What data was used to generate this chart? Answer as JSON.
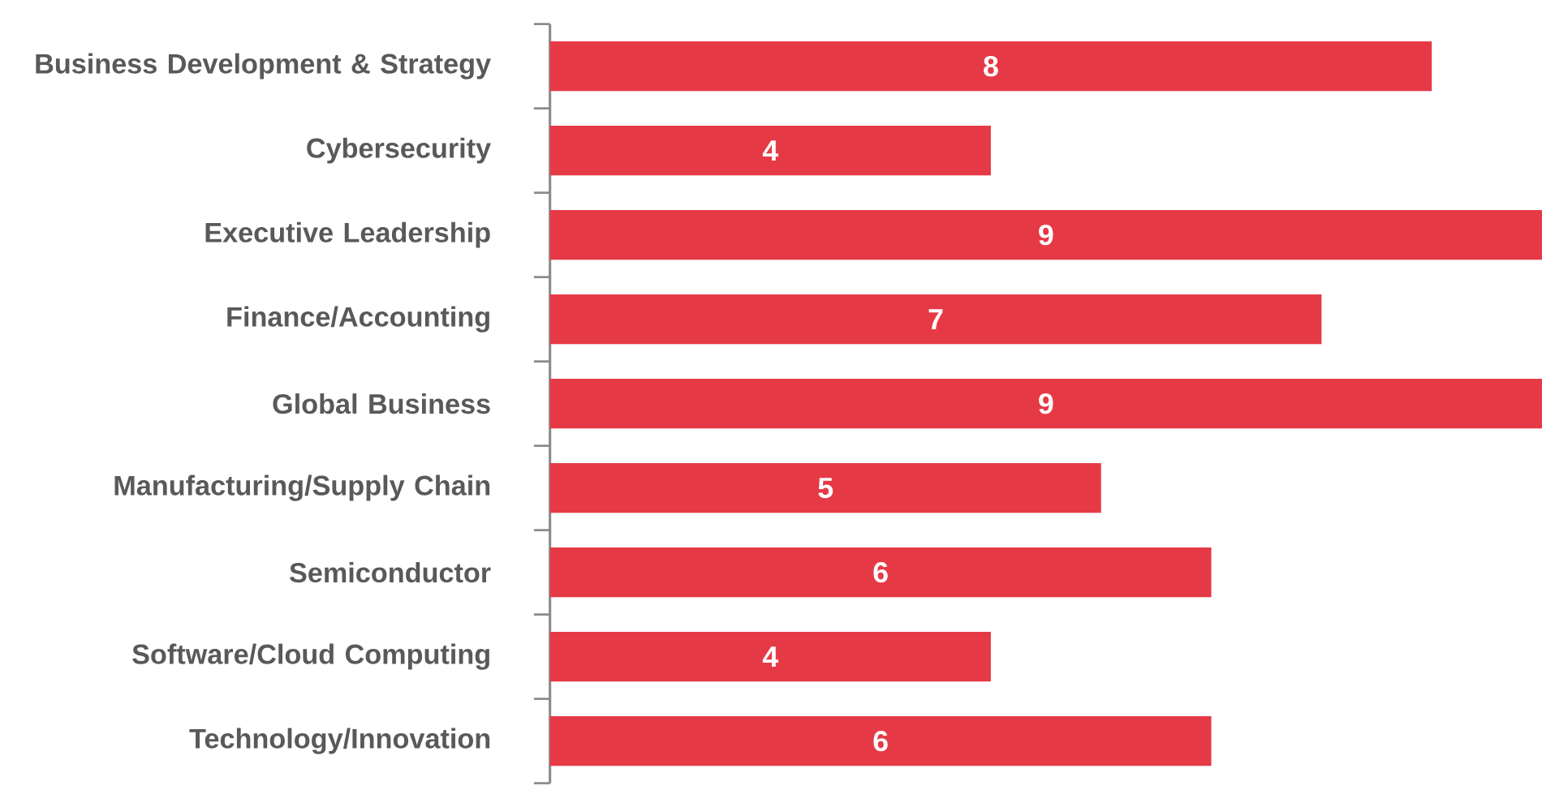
{
  "chart_data": {
    "type": "bar",
    "orientation": "horizontal",
    "categories": [
      "Business Development & Strategy",
      "Cybersecurity",
      "Executive Leadership",
      "Finance/Accounting",
      "Global Business",
      "Manufacturing/Supply Chain",
      "Semiconductor",
      "Software/Cloud Computing",
      "Technology/Innovation"
    ],
    "values": [
      8,
      4,
      9,
      7,
      9,
      5,
      6,
      4,
      6
    ],
    "color": "#e63946",
    "xlim": [
      0,
      9
    ],
    "data_labels": true,
    "tick_labels": "y"
  }
}
